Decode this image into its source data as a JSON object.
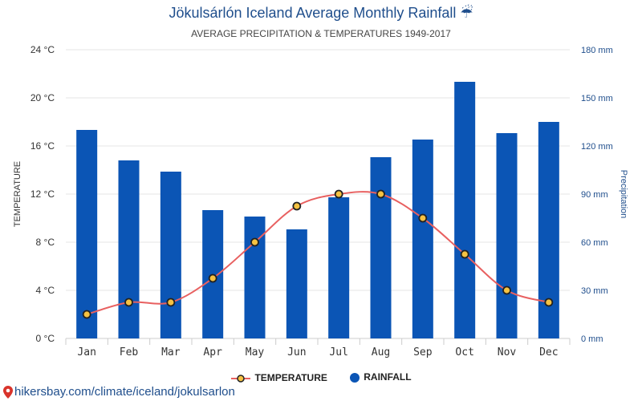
{
  "header": {
    "title": "Jökulsárlón Iceland Average Monthly Rainfall ☔",
    "subtitle": "AVERAGE PRECIPITATION & TEMPERATURES 1949-2017"
  },
  "legend": {
    "temperature_label": "TEMPERATURE",
    "rainfall_label": "RAINFALL"
  },
  "footer": {
    "source": "hikersbay.com/climate/iceland/jokulsarlon",
    "icon": "location-pin-icon"
  },
  "colors": {
    "title": "#1f4e8c",
    "bar": "#0b55b5",
    "line": "#e86060",
    "marker_fill": "#f5c242",
    "marker_stroke": "#222222",
    "grid": "#e6e6e6"
  },
  "chart_data": {
    "type": "bar",
    "title": "Jökulsárlón Iceland Average Monthly Rainfall ☔",
    "subtitle": "AVERAGE PRECIPITATION & TEMPERATURES 1949-2017",
    "categories": [
      "Jan",
      "Feb",
      "Mar",
      "Apr",
      "May",
      "Jun",
      "Jul",
      "Aug",
      "Sep",
      "Oct",
      "Nov",
      "Dec"
    ],
    "series": [
      {
        "name": "RAINFALL",
        "type": "bar",
        "axis": "right",
        "values": [
          130,
          111,
          104,
          80,
          76,
          68,
          88,
          113,
          124,
          160,
          128,
          135
        ]
      },
      {
        "name": "TEMPERATURE",
        "type": "line",
        "axis": "left",
        "values": [
          2,
          3,
          3,
          5,
          8,
          11,
          12,
          12,
          10,
          7,
          4,
          3
        ]
      }
    ],
    "ylabel_left": "TEMPERATURE",
    "ylabel_right": "Precipitation",
    "ylim_left": [
      0,
      24
    ],
    "ylim_right": [
      0,
      180
    ],
    "yticks_left": [
      "0 °C",
      "4 °C",
      "8 °C",
      "12 °C",
      "16 °C",
      "20 °C",
      "24 °C"
    ],
    "yticks_right": [
      "0 mm",
      "30 mm",
      "60 mm",
      "90 mm",
      "120 mm",
      "150 mm",
      "180 mm"
    ],
    "grid": true,
    "legend_position": "bottom-center"
  }
}
